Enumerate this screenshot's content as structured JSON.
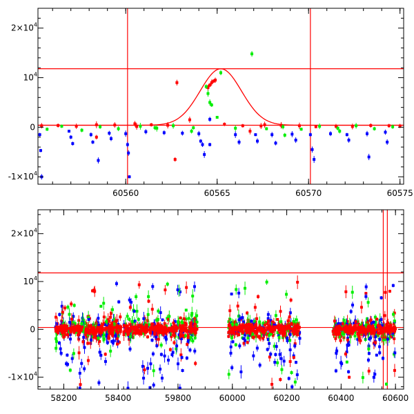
{
  "colors": {
    "red": "#ff0000",
    "green": "#00ee00",
    "blue": "#0000ff",
    "frame": "#000000"
  },
  "chart_data": [
    {
      "type": "scatter",
      "title": "",
      "xlabel": "",
      "ylabel": "",
      "xlim": [
        60555.2,
        60575.2
      ],
      "ylim": [
        -11500,
        24000
      ],
      "x_ticks": [
        60560,
        60565,
        60570,
        60575
      ],
      "x_tick_labels": [
        "60560",
        "60565",
        "60570",
        "60575"
      ],
      "y_ticks": [
        -10000,
        0,
        10000,
        20000
      ],
      "y_tick_labels": [
        {
          "mantissa": "-1×10",
          "exp": "4"
        },
        {
          "mantissa": "0",
          "exp": ""
        },
        {
          "mantissa": "10",
          "exp": "4"
        },
        {
          "mantissa": "2×10",
          "exp": "4"
        }
      ],
      "hlines": [
        400,
        11800
      ],
      "vlines": [
        60560.1,
        60570.1
      ],
      "model_curve": {
        "baseline": 400,
        "peak": 11800,
        "t0": 60565.2,
        "width": 1.6
      },
      "series": [
        {
          "color": "red",
          "points": [
            [
              60555.4,
              300
            ],
            [
              60556.3,
              350
            ],
            [
              60557.3,
              200
            ],
            [
              60558.4,
              500
            ],
            [
              60559.4,
              450
            ],
            [
              60560.5,
              700
            ],
            [
              60561.4,
              500
            ],
            [
              60562.3,
              400
            ],
            [
              60562.8,
              9000
            ],
            [
              60563.5,
              1500
            ],
            [
              60564.5,
              8000
            ],
            [
              60564.6,
              8500
            ],
            [
              60564.7,
              9000
            ],
            [
              60564.8,
              9300
            ],
            [
              60564.9,
              9500
            ],
            [
              60565.4,
              600
            ],
            [
              60566.4,
              300
            ],
            [
              60567.4,
              250
            ],
            [
              60568.5,
              400
            ],
            [
              60569.5,
              300
            ],
            [
              60570.4,
              100
            ],
            [
              60571.5,
              200
            ],
            [
              60572.4,
              150
            ],
            [
              60573.4,
              350
            ],
            [
              60574.4,
              300
            ],
            [
              60575.0,
              250
            ],
            [
              60560.6,
              150
            ],
            [
              60566.8,
              -800
            ],
            [
              60562.7,
              -6500
            ],
            [
              60558.4,
              -2000
            ],
            [
              60567.6,
              500
            ]
          ]
        },
        {
          "color": "green",
          "points": [
            [
              60555.7,
              -400
            ],
            [
              60556.5,
              200
            ],
            [
              60557.6,
              -600
            ],
            [
              60558.6,
              100
            ],
            [
              60559.6,
              -300
            ],
            [
              60560.8,
              200
            ],
            [
              60561.6,
              -100
            ],
            [
              60562.6,
              300
            ],
            [
              60563.7,
              -100
            ],
            [
              60564.4,
              8200
            ],
            [
              60564.5,
              6800
            ],
            [
              60564.6,
              5000
            ],
            [
              60564.7,
              4500
            ],
            [
              60565.2,
              11000
            ],
            [
              60566.0,
              -200
            ],
            [
              60566.9,
              14800
            ],
            [
              60567.7,
              -300
            ],
            [
              60568.6,
              100
            ],
            [
              60569.6,
              -400
            ],
            [
              60570.6,
              200
            ],
            [
              60571.6,
              -200
            ],
            [
              60572.6,
              300
            ],
            [
              60573.6,
              -300
            ],
            [
              60574.6,
              100
            ],
            [
              60568.7,
              -1600
            ],
            [
              60571.7,
              -800
            ],
            [
              60561.7,
              -200
            ],
            [
              60563.6,
              -800
            ],
            [
              60565.0,
              2000
            ]
          ]
        },
        {
          "color": "blue",
          "points": [
            [
              60555.3,
              -1500
            ],
            [
              60555.35,
              -4700
            ],
            [
              60555.4,
              -10000
            ],
            [
              60556.9,
              -800
            ],
            [
              60557.0,
              -2000
            ],
            [
              60557.1,
              -3300
            ],
            [
              60558.1,
              -1500
            ],
            [
              60558.2,
              -3000
            ],
            [
              60558.5,
              -6700
            ],
            [
              60559.1,
              -1200
            ],
            [
              60559.2,
              -2300
            ],
            [
              60560.0,
              -1300
            ],
            [
              60560.1,
              -3500
            ],
            [
              60560.15,
              -5200
            ],
            [
              60560.2,
              -10000
            ],
            [
              60561.1,
              -900
            ],
            [
              60562.1,
              -1100
            ],
            [
              60563.1,
              -1200
            ],
            [
              60564.0,
              -1300
            ],
            [
              60564.1,
              -2800
            ],
            [
              60564.2,
              -3500
            ],
            [
              60564.3,
              -5500
            ],
            [
              60564.6,
              -3500
            ],
            [
              60564.6,
              1600
            ],
            [
              60566.0,
              -1500
            ],
            [
              60566.2,
              -3000
            ],
            [
              60567.1,
              -1500
            ],
            [
              60567.2,
              -2800
            ],
            [
              60568.0,
              -1500
            ],
            [
              60568.2,
              -3200
            ],
            [
              60569.1,
              -1400
            ],
            [
              60569.3,
              -2600
            ],
            [
              60570.1,
              -1500
            ],
            [
              60570.2,
              -4500
            ],
            [
              60570.3,
              -6500
            ],
            [
              60571.2,
              -1300
            ],
            [
              60572.1,
              -1500
            ],
            [
              60572.2,
              -2600
            ],
            [
              60573.2,
              -1300
            ],
            [
              60573.3,
              -6000
            ],
            [
              60574.2,
              -1000
            ],
            [
              60574.3,
              -3000
            ]
          ]
        }
      ]
    },
    {
      "type": "scatter",
      "title": "",
      "xlabel": "",
      "ylabel": "",
      "xlim": [
        58105,
        60630
      ],
      "ylim": [
        -12500,
        25000
      ],
      "x_ticks": [
        58200,
        58400,
        59800,
        60000,
        60200,
        60400,
        60600
      ],
      "x_tick_labels": [
        "58200",
        "58400",
        "59800",
        "60000",
        "60200",
        "60400",
        "60600"
      ],
      "y_ticks": [
        -10000,
        0,
        10000,
        20000
      ],
      "y_tick_labels": [
        {
          "mantissa": "-1×10",
          "exp": "4"
        },
        {
          "mantissa": "0",
          "exp": ""
        },
        {
          "mantissa": "10",
          "exp": "4"
        },
        {
          "mantissa": "2×10",
          "exp": "4"
        }
      ],
      "x_break": {
        "from": 58440,
        "to": 59620,
        "gap_from": 58405,
        "gap_to": 59590
      },
      "hlines": [
        400,
        11800
      ],
      "vlines": [
        60555,
        60570
      ],
      "seasons": [
        [
          58170,
          58410
        ],
        [
          59600,
          59870
        ],
        [
          59985,
          60250
        ],
        [
          60370,
          60600
        ]
      ],
      "series_colors": [
        "red",
        "green",
        "blue"
      ]
    }
  ]
}
